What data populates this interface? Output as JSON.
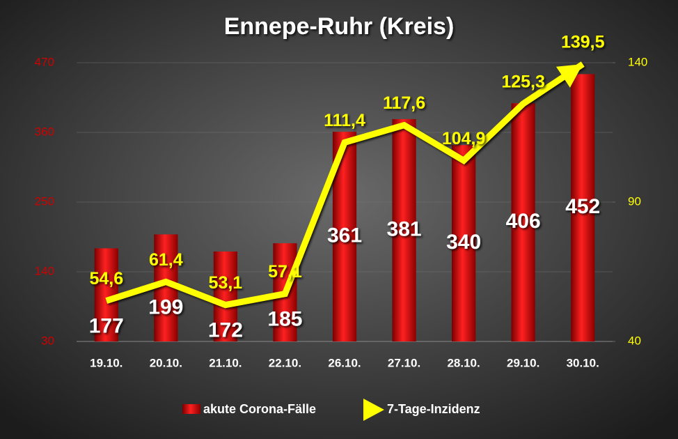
{
  "chart_data": {
    "type": "bar-line",
    "title": "Ennepe-Ruhr (Kreis)",
    "categories": [
      "19.10.",
      "20.10.",
      "21.10.",
      "22.10.",
      "26.10.",
      "27.10.",
      "28.10.",
      "29.10.",
      "30.10."
    ],
    "series": [
      {
        "name": "akute Corona-Fälle",
        "type": "bar",
        "color": "#d00000",
        "values": [
          177,
          199,
          172,
          185,
          361,
          381,
          340,
          406,
          452
        ]
      },
      {
        "name": "7-Tage-Inzidenz",
        "type": "line",
        "axis": "y2",
        "color": "#ffff00",
        "values": [
          54.6,
          61.4,
          53.1,
          57.1,
          111.4,
          117.6,
          104.9,
          125.3,
          139.5
        ],
        "value_labels": [
          "54,6",
          "61,4",
          "53,1",
          "57,1",
          "111,4",
          "117,6",
          "104,9",
          "125,3",
          "139,5"
        ]
      }
    ],
    "ylim": [
      30,
      470
    ],
    "yticks": [
      30,
      140,
      250,
      360,
      470
    ],
    "y2lim": [
      40,
      140
    ],
    "y2ticks": [
      40,
      90,
      140
    ],
    "grid": true,
    "legend": "bottom"
  }
}
